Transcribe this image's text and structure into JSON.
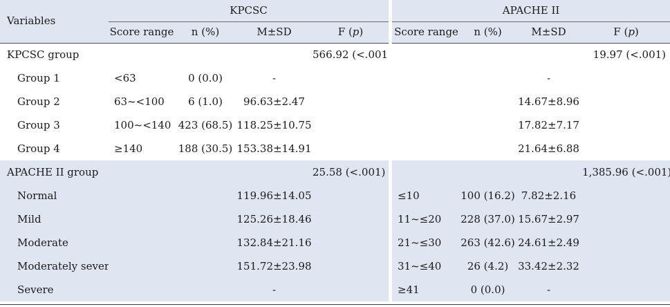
{
  "header": {
    "variables": "Variables",
    "kpcsc": "KPCSC",
    "apache": "APACHE II",
    "cols": {
      "score_range": "Score range",
      "n_pct": "n (%)",
      "msd": "M±SD",
      "f_p_prefix": "F (",
      "f_p_p": "p",
      "f_p_suffix": ")"
    }
  },
  "kpcsc_group": {
    "label": "KPCSC group",
    "kpcsc_f": "566.92 (<.001)",
    "apache_f": "19.97 (<.001)",
    "rows": [
      {
        "label": "Group 1",
        "k_range": "<63",
        "k_n": "0 (0.0)",
        "k_msd": "-",
        "a_msd": "-"
      },
      {
        "label": "Group 2",
        "k_range": "63~<100",
        "k_n": "6 (1.0)",
        "k_msd": "96.63±2.47",
        "a_msd": "14.67±8.96"
      },
      {
        "label": "Group 3",
        "k_range": "100~<140",
        "k_n": "423 (68.5)",
        "k_msd": "118.25±10.75",
        "a_msd": "17.82±7.17"
      },
      {
        "label": "Group 4",
        "k_range": "≥140",
        "k_n": "188 (30.5)",
        "k_msd": "153.38±14.91",
        "a_msd": "21.64±6.88"
      }
    ]
  },
  "apache_group": {
    "label": "APACHE II group",
    "kpcsc_f": "25.58 (<.001)",
    "apache_f": "1,385.96 (<.001)",
    "rows": [
      {
        "label": "Normal",
        "k_msd": "119.96±14.05",
        "a_range": "≤10",
        "a_n": "100 (16.2)",
        "a_msd": "7.82±2.16"
      },
      {
        "label": "Mild",
        "k_msd": "125.26±18.46",
        "a_range": "11~≤20",
        "a_n": "228 (37.0)",
        "a_msd": "15.67±2.97"
      },
      {
        "label": "Moderate",
        "k_msd": "132.84±21.16",
        "a_range": "21~≤30",
        "a_n": "263 (42.6)",
        "a_msd": "24.61±2.49"
      },
      {
        "label": "Moderately severe",
        "k_msd": "151.72±23.98",
        "a_range": "31~≤40",
        "a_n": "26 (4.2)",
        "a_msd": "33.42±2.32"
      },
      {
        "label": "Severe",
        "k_msd": "-",
        "a_range": "≥41",
        "a_n": "0 (0.0)",
        "a_msd": "-"
      }
    ]
  }
}
